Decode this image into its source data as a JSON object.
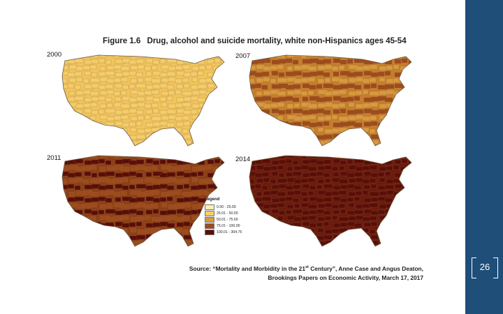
{
  "figure": {
    "title_label": "Figure 1.6",
    "title_text": "Drug, alcohol and suicide mortality, white non-Hispanics ages 45-54",
    "maps": [
      {
        "year": "2000",
        "dominant": "#f2c45c",
        "pattern": [
          2,
          1,
          2,
          1,
          2,
          2,
          1,
          2,
          3,
          2
        ]
      },
      {
        "year": "2007",
        "dominant": "#c57e2c",
        "pattern": [
          3,
          2,
          4,
          3,
          2,
          4,
          3,
          2,
          4,
          3
        ]
      },
      {
        "year": "2011",
        "dominant": "#8d3f16",
        "pattern": [
          4,
          3,
          5,
          4,
          3,
          5,
          4,
          4,
          3,
          5
        ]
      },
      {
        "year": "2014",
        "dominant": "#6b1a0c",
        "pattern": [
          5,
          4,
          5,
          5,
          4,
          5,
          4,
          5,
          5,
          4
        ]
      }
    ],
    "legend": {
      "title": "Legend",
      "items": [
        {
          "label": "0.00 - 25.00",
          "color": "#fbf0a6"
        },
        {
          "label": "25.01 - 50.00",
          "color": "#f4cd6a"
        },
        {
          "label": "50.01 - 75.00",
          "color": "#d9993e"
        },
        {
          "label": "75.01 - 100.00",
          "color": "#9e4b1b"
        },
        {
          "label": "100.01 - 304.75",
          "color": "#5a0d07"
        }
      ]
    }
  },
  "source": {
    "line1_prefix": "Source: “Mortality and Morbidity in the 21",
    "line1_sup": "st",
    "line1_suffix": " Century”, Anne Case and Angus Deaton,",
    "line2": "Brookings Papers on Economic Activity, March 17, 2017"
  },
  "page_number": "26",
  "colors": {
    "band": "#1f4e79",
    "levels": [
      "#fbf0a6",
      "#f4cd6a",
      "#d9993e",
      "#9e4b1b",
      "#5a0d07"
    ]
  }
}
